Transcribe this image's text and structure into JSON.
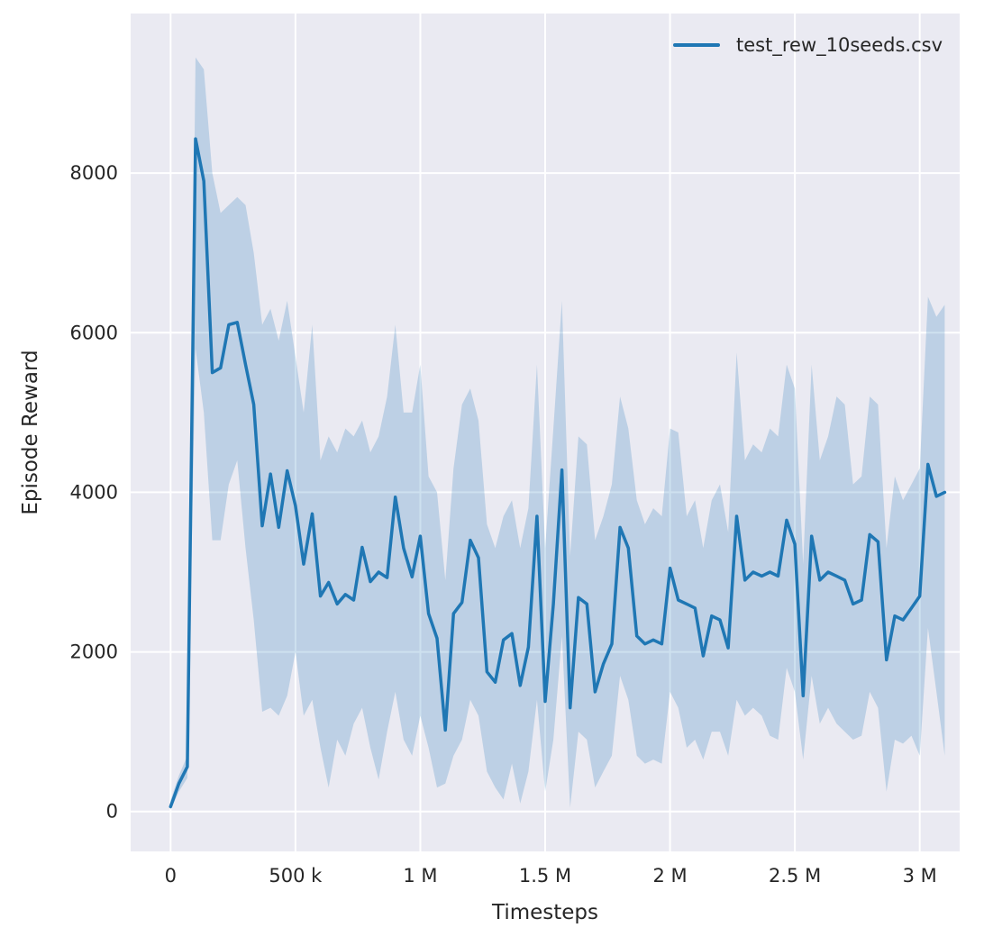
{
  "chart_data": {
    "type": "line",
    "title": "",
    "xlabel": "Timesteps",
    "ylabel": "Episode Reward",
    "legend_label": "test_rew_10seeds.csv",
    "legend_position": "upper right",
    "grid": true,
    "plot_bg": "#eaeaf2",
    "grid_color": "#ffffff",
    "line_color": "#1f77b4",
    "band_color": "#1f77b4",
    "band_opacity": 0.22,
    "tick_color": "#262626",
    "x_unit": "millions of timesteps",
    "xlim": [
      -0.16,
      3.16
    ],
    "ylim": [
      -500,
      10000
    ],
    "x_ticks": [
      {
        "v": 0,
        "label": "0"
      },
      {
        "v": 0.5,
        "label": "500 k"
      },
      {
        "v": 1,
        "label": "1 M"
      },
      {
        "v": 1.5,
        "label": "1.5 M"
      },
      {
        "v": 2,
        "label": "2 M"
      },
      {
        "v": 2.5,
        "label": "2.5 M"
      },
      {
        "v": 3,
        "label": "3 M"
      }
    ],
    "y_ticks": [
      {
        "v": 0,
        "label": "0"
      },
      {
        "v": 2000,
        "label": "2000"
      },
      {
        "v": 4000,
        "label": "4000"
      },
      {
        "v": 6000,
        "label": "6000"
      },
      {
        "v": 8000,
        "label": "8000"
      }
    ],
    "series": [
      {
        "name": "test_rew_10seeds.csv",
        "x": [
          0.0,
          0.033,
          0.067,
          0.1,
          0.133,
          0.167,
          0.2,
          0.233,
          0.267,
          0.3,
          0.333,
          0.367,
          0.4,
          0.433,
          0.467,
          0.5,
          0.533,
          0.567,
          0.6,
          0.633,
          0.667,
          0.7,
          0.733,
          0.767,
          0.8,
          0.833,
          0.867,
          0.9,
          0.933,
          0.967,
          1.0,
          1.033,
          1.067,
          1.1,
          1.133,
          1.167,
          1.2,
          1.233,
          1.267,
          1.3,
          1.333,
          1.367,
          1.4,
          1.433,
          1.467,
          1.5,
          1.533,
          1.567,
          1.6,
          1.633,
          1.667,
          1.7,
          1.733,
          1.767,
          1.8,
          1.833,
          1.867,
          1.9,
          1.933,
          1.967,
          2.0,
          2.033,
          2.067,
          2.1,
          2.133,
          2.167,
          2.2,
          2.233,
          2.267,
          2.3,
          2.333,
          2.367,
          2.4,
          2.433,
          2.467,
          2.5,
          2.533,
          2.567,
          2.6,
          2.633,
          2.667,
          2.7,
          2.733,
          2.767,
          2.8,
          2.833,
          2.867,
          2.9,
          2.933,
          2.967,
          3.0,
          3.033,
          3.067,
          3.1
        ],
        "mean": [
          60,
          350,
          560,
          8430,
          7900,
          5500,
          5560,
          6100,
          6130,
          5600,
          5100,
          3580,
          4230,
          3560,
          4270,
          3830,
          3100,
          3730,
          2700,
          2870,
          2600,
          2720,
          2650,
          3310,
          2880,
          3000,
          2930,
          3940,
          3300,
          2940,
          3450,
          2480,
          2170,
          1020,
          2480,
          2620,
          3400,
          3180,
          1750,
          1620,
          2150,
          2230,
          1580,
          2060,
          3700,
          1380,
          2600,
          4280,
          1300,
          2680,
          2600,
          1500,
          1850,
          2100,
          3560,
          3300,
          2200,
          2100,
          2150,
          2100,
          3050,
          2650,
          2600,
          2550,
          1950,
          2450,
          2400,
          2050,
          3700,
          2900,
          3000,
          2950,
          3000,
          2950,
          3650,
          3350,
          1450,
          3450,
          2900,
          3000,
          2950,
          2900,
          2600,
          2650,
          3470,
          3380,
          1900,
          2450,
          2400,
          2550,
          2700,
          4350,
          3950,
          4000
        ],
        "upper": [
          140,
          450,
          700,
          9450,
          9300,
          8000,
          7500,
          7600,
          7700,
          7600,
          7000,
          6100,
          6300,
          5900,
          6400,
          5700,
          5000,
          6100,
          4400,
          4700,
          4500,
          4800,
          4700,
          4900,
          4500,
          4700,
          5200,
          6100,
          5000,
          5000,
          5600,
          4200,
          4000,
          2900,
          4300,
          5100,
          5300,
          4900,
          3600,
          3300,
          3700,
          3900,
          3300,
          3800,
          5600,
          3300,
          4800,
          6400,
          3200,
          4700,
          4600,
          3400,
          3700,
          4100,
          5200,
          4800,
          3900,
          3600,
          3800,
          3700,
          4800,
          4750,
          3700,
          3900,
          3300,
          3900,
          4100,
          3500,
          5750,
          4400,
          4600,
          4500,
          4800,
          4700,
          5600,
          5300,
          3100,
          5600,
          4400,
          4700,
          5200,
          5100,
          4100,
          4200,
          5200,
          5100,
          3300,
          4200,
          3900,
          4100,
          4300,
          6450,
          6200,
          6350
        ],
        "lower": [
          20,
          250,
          420,
          5800,
          5000,
          3400,
          3400,
          4100,
          4400,
          3300,
          2400,
          1250,
          1300,
          1200,
          1450,
          2000,
          1200,
          1400,
          800,
          300,
          900,
          700,
          1100,
          1300,
          800,
          400,
          1000,
          1500,
          900,
          700,
          1200,
          800,
          300,
          350,
          700,
          900,
          1400,
          1200,
          500,
          300,
          150,
          600,
          100,
          500,
          1400,
          250,
          900,
          2200,
          50,
          1000,
          900,
          300,
          500,
          700,
          1700,
          1400,
          700,
          600,
          650,
          600,
          1500,
          1300,
          800,
          900,
          650,
          1000,
          1000,
          700,
          1400,
          1200,
          1300,
          1200,
          950,
          900,
          1800,
          1500,
          650,
          1700,
          1100,
          1300,
          1100,
          1000,
          900,
          950,
          1500,
          1300,
          250,
          900,
          850,
          950,
          700,
          2300,
          1500,
          700
        ]
      }
    ]
  }
}
